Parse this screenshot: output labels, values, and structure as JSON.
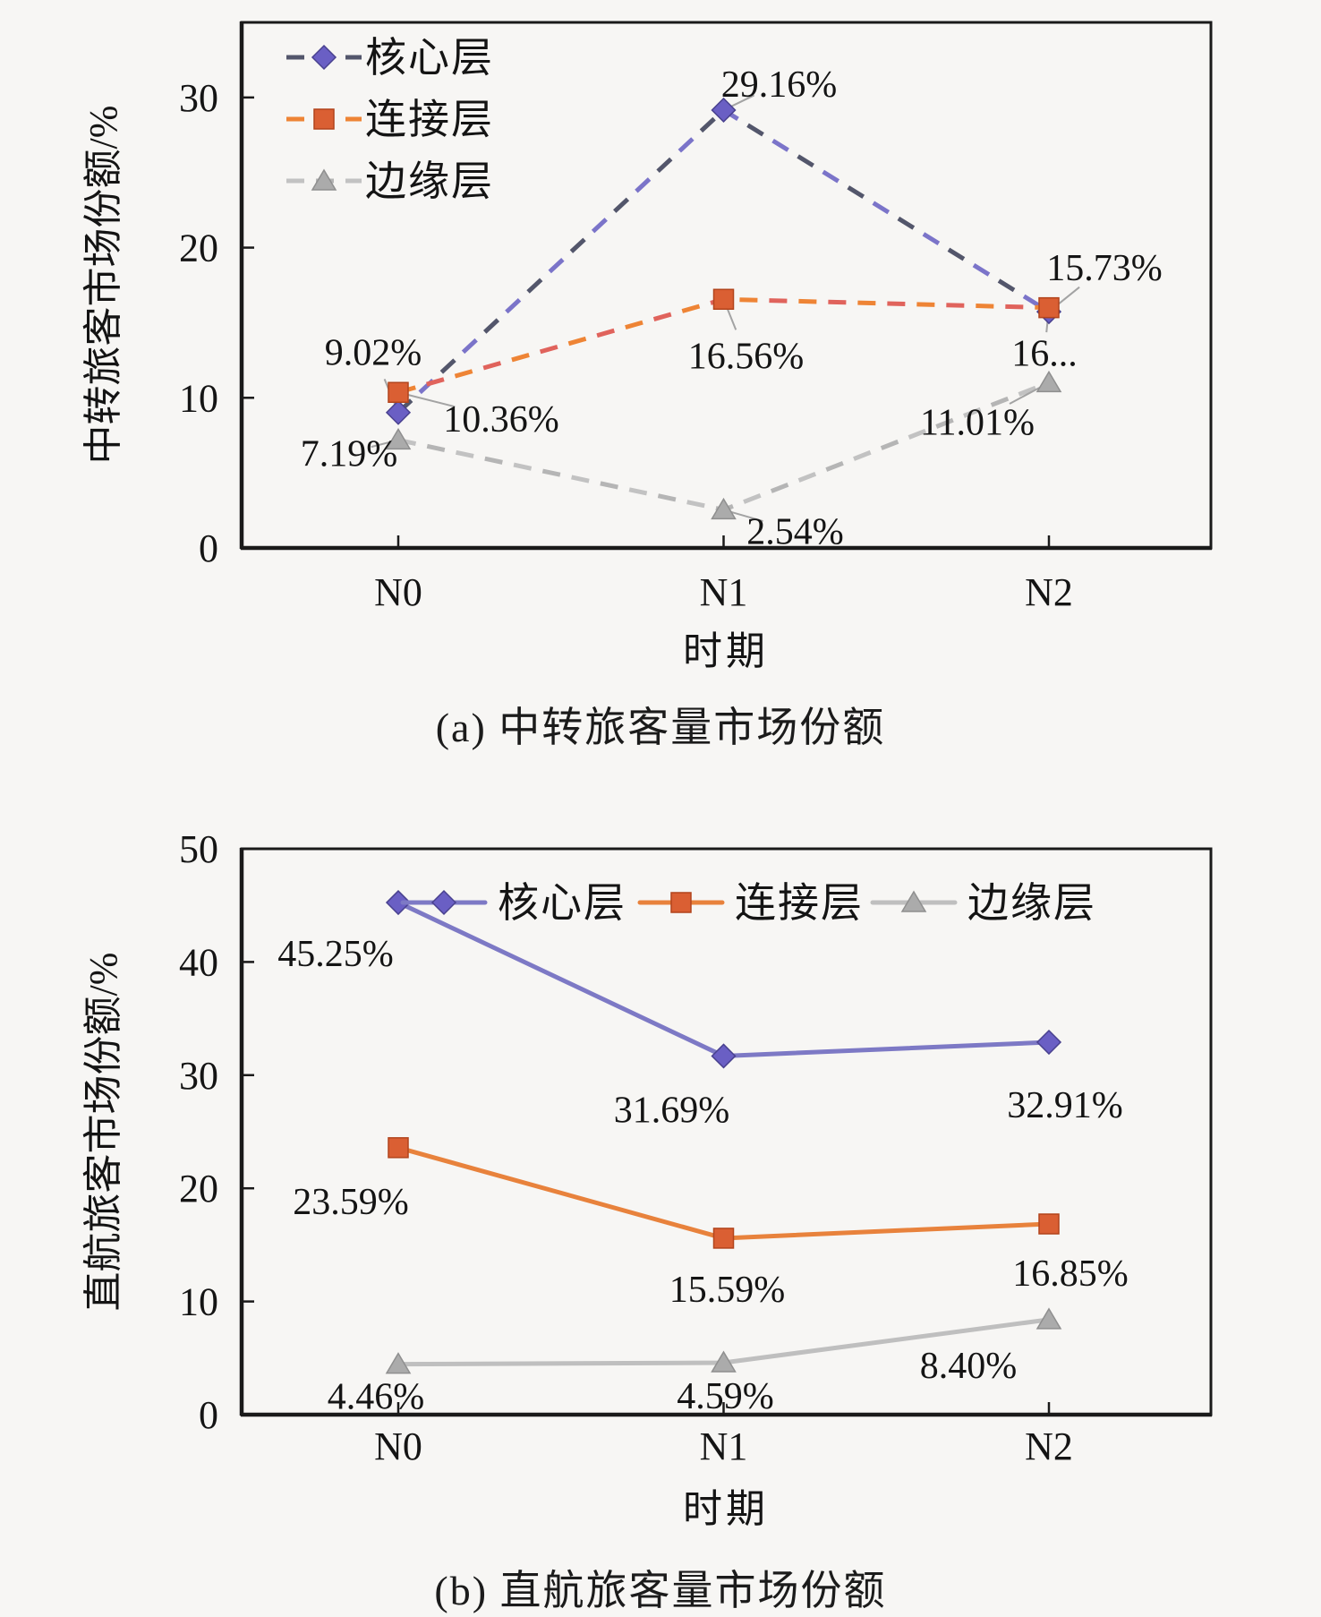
{
  "page": {
    "background": "#f7f6f4",
    "text_color": "#141414",
    "axis_color": "#1a1a1a"
  },
  "chart_data": [
    {
      "type": "line",
      "id": "a",
      "caption": "(a) 中转旅客量市场份额",
      "xlabel": "时期",
      "ylabel": "中转旅客市场份额/%",
      "categories": [
        "N0",
        "N1",
        "N2"
      ],
      "y_ticks": [
        0,
        10,
        20,
        30
      ],
      "ylim": [
        0,
        35
      ],
      "grid": false,
      "legend_position": "top-left-vertical",
      "line_style": "dashed",
      "leader_lines": true,
      "leader_color": "#a3a3a3",
      "series": [
        {
          "name": "核心层",
          "marker": "diamond",
          "line_colors": [
            "#53566b",
            "#7b74c9"
          ],
          "marker_fill": "#6a5fc4",
          "marker_stroke": "#49418f",
          "values": [
            9.02,
            29.16,
            15.73
          ],
          "labels": [
            "9.02%",
            "29.16%",
            "15.73%"
          ],
          "label_offsets": [
            [
              -28,
              -68
            ],
            [
              62,
              -30
            ],
            [
              62,
              -50
            ]
          ]
        },
        {
          "name": "连接层",
          "marker": "square",
          "line_colors": [
            "#ee8435",
            "#e0635c"
          ],
          "marker_fill": "#da5f33",
          "marker_stroke": "#b2441c",
          "values": [
            10.36,
            16.56,
            16.0
          ],
          "labels": [
            "10.36%",
            "16.56%",
            "16..."
          ],
          "label_offsets": [
            [
              115,
              29
            ],
            [
              25,
              62
            ],
            [
              -5,
              50
            ]
          ]
        },
        {
          "name": "边缘层",
          "marker": "triangle",
          "line_colors": [
            "#c2c2c2",
            "#b5b5b5"
          ],
          "marker_fill": "#ababab",
          "marker_stroke": "#8f8f8f",
          "values": [
            7.19,
            2.54,
            11.01
          ],
          "labels": [
            "7.19%",
            "2.54%",
            "11.01%"
          ],
          "label_offsets": [
            [
              -55,
              14
            ],
            [
              80,
              23
            ],
            [
              -80,
              43
            ]
          ]
        }
      ]
    },
    {
      "type": "line",
      "id": "b",
      "caption": "(b) 直航旅客量市场份额",
      "xlabel": "时期",
      "ylabel": "直航旅客市场份额/%",
      "categories": [
        "N0",
        "N1",
        "N2"
      ],
      "y_ticks": [
        0,
        10,
        20,
        30,
        40,
        50
      ],
      "ylim": [
        0,
        50
      ],
      "grid": false,
      "legend_position": "top-horizontal",
      "line_style": "solid",
      "leader_lines": false,
      "leader_color": "#a3a3a3",
      "series": [
        {
          "name": "核心层",
          "marker": "diamond",
          "line_colors": [
            "#7d79c5"
          ],
          "marker_fill": "#6a5fc4",
          "marker_stroke": "#49418f",
          "values": [
            45.25,
            31.69,
            32.91
          ],
          "labels": [
            "45.25%",
            "31.69%",
            "32.91%"
          ],
          "label_offsets": [
            [
              -70,
              56
            ],
            [
              -58,
              59
            ],
            [
              18,
              69
            ]
          ]
        },
        {
          "name": "连接层",
          "marker": "square",
          "line_colors": [
            "#e8823c"
          ],
          "marker_fill": "#da5f33",
          "marker_stroke": "#b2441c",
          "values": [
            23.59,
            15.59,
            16.85
          ],
          "labels": [
            "23.59%",
            "15.59%",
            "16.85%"
          ],
          "label_offsets": [
            [
              -53,
              59
            ],
            [
              4,
              56
            ],
            [
              24,
              54
            ]
          ]
        },
        {
          "name": "边缘层",
          "marker": "triangle",
          "line_colors": [
            "#bfbfbf"
          ],
          "marker_fill": "#ababab",
          "marker_stroke": "#8f8f8f",
          "values": [
            4.46,
            4.59,
            8.4
          ],
          "labels": [
            "4.46%",
            "4.59%",
            "8.40%"
          ],
          "label_offsets": [
            [
              -25,
              35
            ],
            [
              2,
              36
            ],
            [
              -90,
              50
            ]
          ]
        }
      ]
    }
  ]
}
